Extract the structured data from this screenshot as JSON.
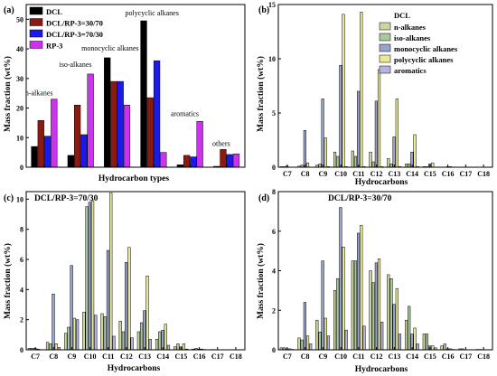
{
  "figure_title": "",
  "chart_data": [
    {
      "panel_label": "(a)",
      "type": "bar",
      "title": "",
      "xlabel": "Hydrocarbon types",
      "ylabel": "Mass fraction (wt%)",
      "ylim": [
        0,
        55
      ],
      "yticks": [
        0,
        10,
        20,
        30,
        40,
        50
      ],
      "categories": [
        "n-alkanes",
        "iso-alkanes",
        "monocyclic alkanes",
        "polycyclic alkanes",
        "aromatics",
        "others"
      ],
      "annotations": [
        "n-alkanes",
        "iso-alkanes",
        "monocyclic alkanes",
        "polycyclic alkanes",
        "aromatics",
        "others"
      ],
      "legend_position": "top-left",
      "series": [
        {
          "name": "DCL",
          "color": "#000000",
          "values": [
            7,
            4,
            37,
            49.5,
            0.8,
            0.3
          ]
        },
        {
          "name": "DCL/RP-3=30/70",
          "color": "#8b1a10",
          "values": [
            15.8,
            21,
            29,
            23.5,
            4,
            6
          ]
        },
        {
          "name": "DCL/RP-3=70/30",
          "color": "#1a1aee",
          "values": [
            10.5,
            11,
            29,
            36,
            3.5,
            4.3
          ]
        },
        {
          "name": "RP-3",
          "color": "#cc33ee",
          "values": [
            23,
            31.5,
            21,
            5,
            15.5,
            4.5
          ]
        }
      ]
    },
    {
      "panel_label": "(b)",
      "type": "bar",
      "title": "",
      "xlabel": "Hydrocarbons",
      "ylabel": "Mass fraction (wt%)",
      "ylim": [
        0,
        15
      ],
      "yticks": [
        0,
        5,
        10,
        15
      ],
      "categories": [
        "C7",
        "C8",
        "C9",
        "C10",
        "C11",
        "C12",
        "C13",
        "C14",
        "C15",
        "C16",
        "C17",
        "C18"
      ],
      "legend_title": "DCL",
      "legend_position": "top-right",
      "series": [
        {
          "name": "n-alkanes",
          "color": "#ccd69c",
          "values": [
            0.05,
            0.1,
            0.2,
            1.4,
            1.5,
            1.4,
            0.8,
            0.3,
            0.05,
            0.02,
            0.01,
            0.01
          ]
        },
        {
          "name": "iso-alkanes",
          "color": "#a8c9a0",
          "values": [
            0.05,
            0.2,
            0.3,
            1.0,
            1.0,
            0.5,
            0.3,
            0.3,
            0.05,
            0.02,
            0.01,
            0.01
          ]
        },
        {
          "name": "monocyclic alkanes",
          "color": "#9aa3cc",
          "values": [
            0.1,
            3.4,
            6.3,
            9.4,
            7.0,
            6.1,
            2.8,
            1.4,
            0.3,
            0.05,
            0.01,
            0.01
          ]
        },
        {
          "name": "polycyclic alkanes",
          "color": "#e8e896",
          "values": [
            0.02,
            0.4,
            2.7,
            14.1,
            14.3,
            9.0,
            6.3,
            3.0,
            0.4,
            0.05,
            0.01,
            0.01
          ]
        },
        {
          "name": "aromatics",
          "color": "#b4b4e0",
          "values": [
            0.02,
            0.02,
            0.05,
            0.05,
            0.05,
            0.05,
            0.05,
            0.05,
            0.02,
            0.01,
            0.01,
            0.01
          ]
        }
      ]
    },
    {
      "panel_label": "(c)",
      "type": "bar",
      "title": "DCL/RP-3=70/30",
      "xlabel": "Hydrocarbons",
      "ylabel": "Mass fraction (wt%)",
      "ylim": [
        0,
        10.5
      ],
      "yticks": [
        0,
        2,
        4,
        6,
        8,
        10
      ],
      "categories": [
        "C7",
        "C8",
        "C9",
        "C10",
        "C11",
        "C12",
        "C13",
        "C14",
        "C15",
        "C16",
        "C17",
        "C18"
      ],
      "series": [
        {
          "name": "n-alkanes",
          "color": "#ccd69c",
          "values": [
            0.1,
            0.5,
            1.1,
            2.5,
            2.4,
            1.9,
            1.2,
            0.7,
            0.2,
            0.05,
            0.02,
            0.01
          ]
        },
        {
          "name": "iso-alkanes",
          "color": "#a8c9a0",
          "values": [
            0.1,
            0.4,
            1.5,
            9.5,
            2.2,
            1.2,
            1.8,
            1.2,
            0.4,
            0.1,
            0.02,
            0.01
          ]
        },
        {
          "name": "monocyclic alkanes",
          "color": "#9aa3cc",
          "values": [
            0.1,
            3.7,
            5.6,
            9.8,
            6.6,
            5.8,
            2.6,
            1.3,
            0.2,
            0.05,
            0.01,
            0.01
          ]
        },
        {
          "name": "polycyclic alkanes",
          "color": "#e8e896",
          "values": [
            0.05,
            0.4,
            2.1,
            9.9,
            10.4,
            6.8,
            4.9,
            1.7,
            0.4,
            0.05,
            0.01,
            0.01
          ]
        },
        {
          "name": "aromatics",
          "color": "#b4b4e0",
          "values": [
            0.02,
            0.15,
            2.0,
            2.3,
            0.9,
            0.8,
            0.7,
            0.3,
            0.05,
            0.02,
            0.01,
            0.01
          ]
        }
      ]
    },
    {
      "panel_label": "(d)",
      "type": "bar",
      "title": "DCL/RP-3=30/70",
      "xlabel": "Hydrocarbons",
      "ylabel": "Mass fraction (wt%)",
      "ylim": [
        0,
        8
      ],
      "yticks": [
        0,
        2,
        4,
        6,
        8
      ],
      "categories": [
        "C7",
        "C8",
        "C9",
        "C10",
        "C11",
        "C12",
        "C13",
        "C14",
        "C15",
        "C16",
        "C17",
        "C18"
      ],
      "series": [
        {
          "name": "n-alkanes",
          "color": "#ccd69c",
          "values": [
            0.1,
            0.6,
            1.5,
            3.0,
            4.5,
            4.0,
            3.8,
            1.5,
            0.8,
            0.2,
            0.05,
            0.02
          ]
        },
        {
          "name": "iso-alkanes",
          "color": "#a8c9a0",
          "values": [
            0.1,
            0.5,
            0.9,
            3.6,
            4.5,
            3.4,
            3.6,
            2.2,
            0.8,
            0.3,
            0.05,
            0.02
          ]
        },
        {
          "name": "monocyclic alkanes",
          "color": "#9aa3cc",
          "values": [
            0.05,
            2.4,
            4.5,
            7.2,
            5.9,
            4.4,
            2.3,
            0.8,
            0.2,
            0.05,
            0.01,
            0.01
          ]
        },
        {
          "name": "polycyclic alkanes",
          "color": "#e8e896",
          "values": [
            0.05,
            0.7,
            1.6,
            5.2,
            6.3,
            4.6,
            3.1,
            1.1,
            0.2,
            0.05,
            0.01,
            0.01
          ]
        },
        {
          "name": "aromatics",
          "color": "#b4b4e0",
          "values": [
            0.02,
            0.3,
            0.7,
            1.0,
            1.2,
            1.4,
            0.8,
            0.3,
            0.1,
            0.02,
            0.01,
            0.01
          ]
        }
      ]
    }
  ]
}
